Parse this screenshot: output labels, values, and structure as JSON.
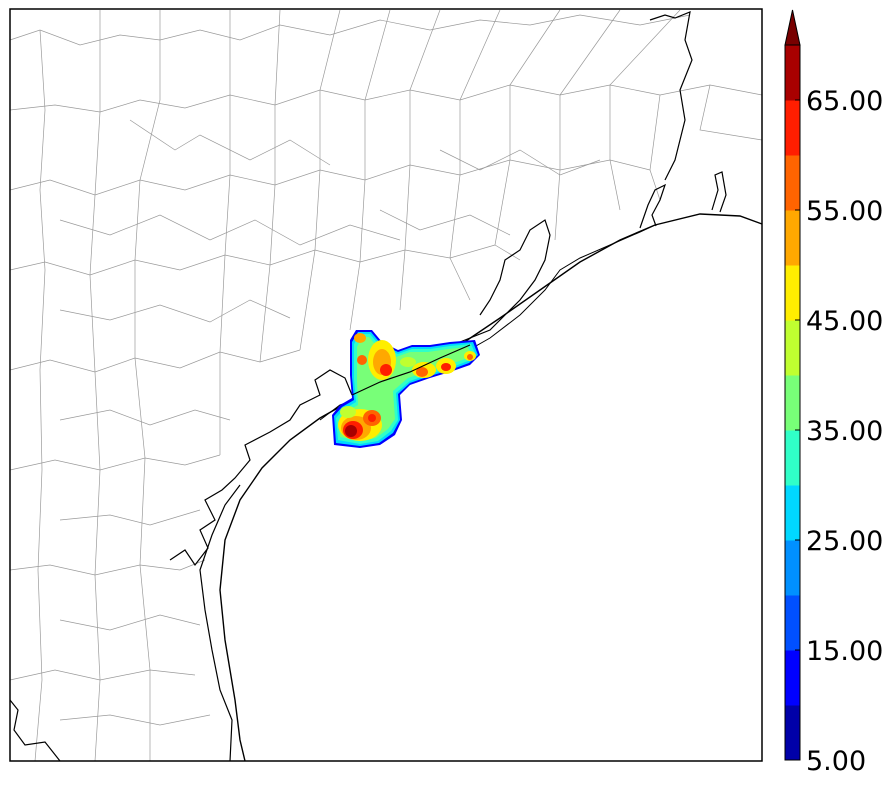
{
  "colorbar": {
    "ticks": [
      "5.00",
      "15.00",
      "25.00",
      "35.00",
      "45.00",
      "55.00",
      "65.00"
    ],
    "extend": "max",
    "levels": [
      5,
      10,
      15,
      20,
      25,
      30,
      35,
      40,
      45,
      50,
      55,
      60,
      65,
      70
    ],
    "colors": [
      "#0000a8",
      "#0000ff",
      "#0050ff",
      "#0090ff",
      "#00d8ff",
      "#30ffc8",
      "#78ff78",
      "#c0ff30",
      "#ffee00",
      "#ffa800",
      "#ff6400",
      "#ff1e00",
      "#a80000",
      "#780000"
    ]
  },
  "map": {
    "description_colors": {
      "coast": "#000000",
      "counties": "#9a9a9a",
      "background": "#ffffff"
    }
  }
}
